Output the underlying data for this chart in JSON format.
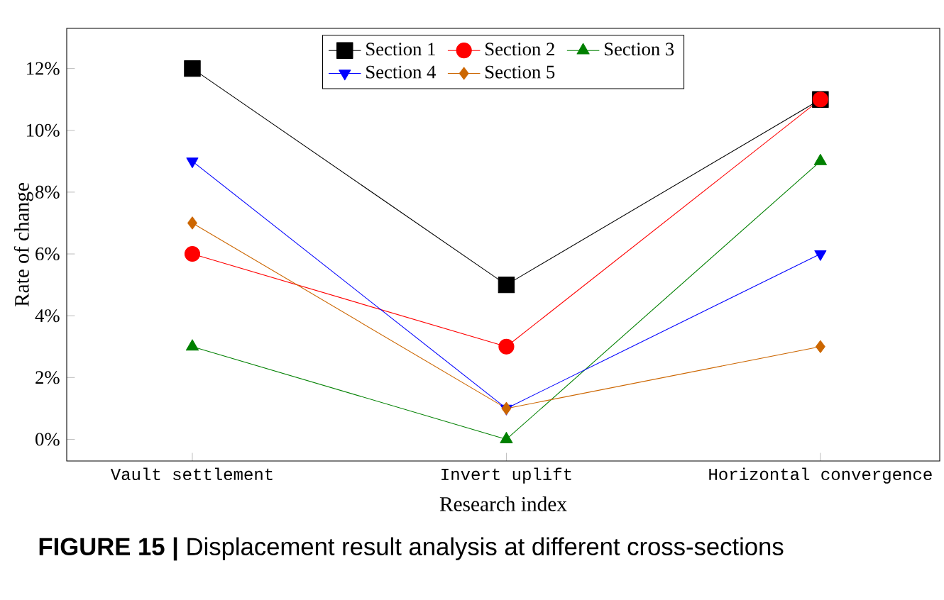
{
  "chart_data": {
    "type": "line",
    "xlabel": "Research index",
    "ylabel": "Rate of change",
    "categories": [
      "Vault settlement",
      "Invert uplift",
      "Horizontal convergence"
    ],
    "series": [
      {
        "name": "Section 1",
        "color": "#000000",
        "marker": "square",
        "values": [
          12,
          5,
          11
        ]
      },
      {
        "name": "Section 2",
        "color": "#ff0000",
        "marker": "circle",
        "values": [
          6,
          3,
          11
        ]
      },
      {
        "name": "Section 3",
        "color": "#008000",
        "marker": "triangle",
        "values": [
          3,
          0,
          9
        ]
      },
      {
        "name": "Section 4",
        "color": "#0000ff",
        "marker": "triangle-down",
        "values": [
          9,
          1,
          6
        ]
      },
      {
        "name": "Section 5",
        "color": "#cc6600",
        "marker": "diamond",
        "values": [
          7,
          1,
          3
        ]
      }
    ],
    "ylim": [
      -0.7,
      13.3
    ],
    "yticks": [
      {
        "value": 0,
        "label": "0%"
      },
      {
        "value": 2,
        "label": "2%"
      },
      {
        "value": 4,
        "label": "4%"
      },
      {
        "value": 6,
        "label": "6%"
      },
      {
        "value": 8,
        "label": "8%"
      },
      {
        "value": 10,
        "label": "10%"
      },
      {
        "value": 12,
        "label": "12%"
      }
    ],
    "legend": "top",
    "grid": false,
    "annotations": [
      "**FIGURE 15 |** Displacement result analysis at different cross-sections"
    ]
  }
}
